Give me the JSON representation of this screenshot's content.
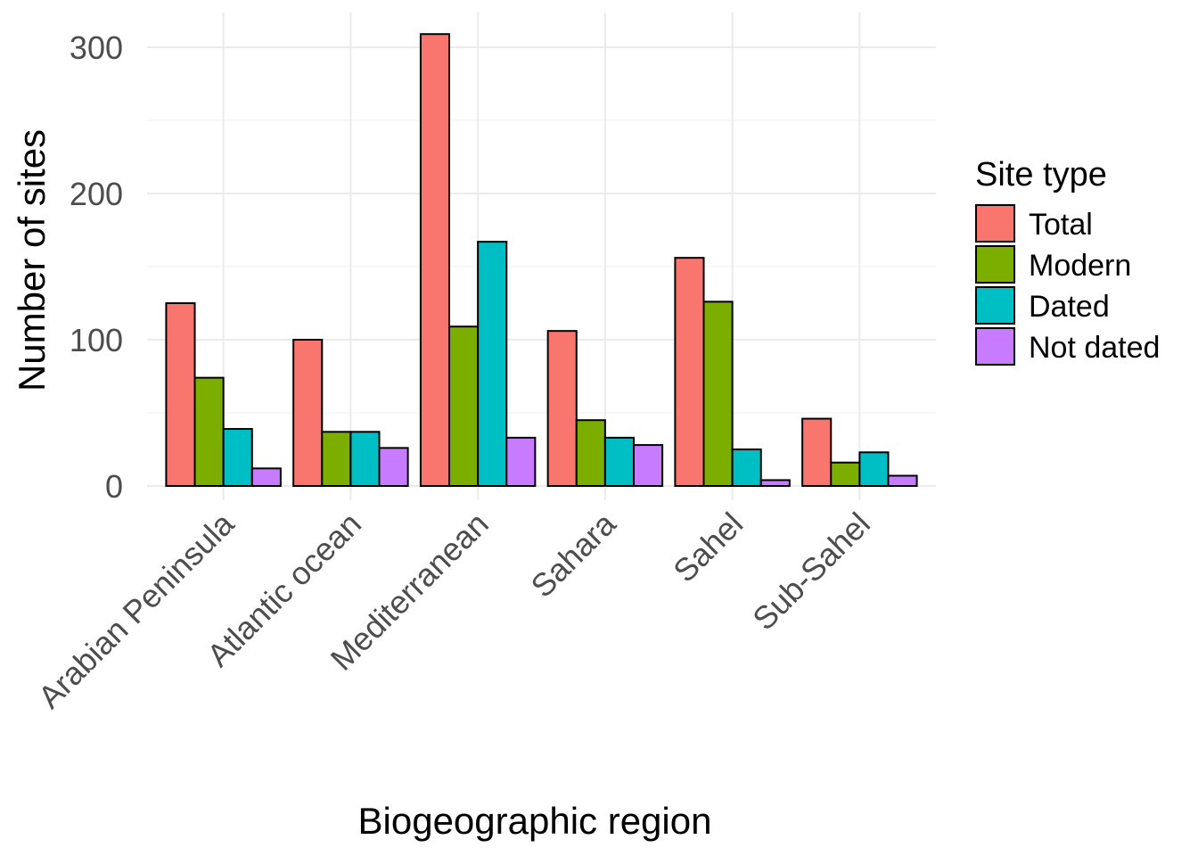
{
  "chart_data": {
    "type": "bar",
    "xlabel": "Biogeographic region",
    "ylabel": "Number of sites",
    "ylim": [
      -10,
      325
    ],
    "yticks": [
      0,
      100,
      200,
      300
    ],
    "grid": true,
    "legend_position": "right",
    "legend_title": "Site type",
    "categories": [
      "Arabian Peninsula",
      "Atlantic ocean",
      "Mediterranean",
      "Sahara",
      "Sahel",
      "Sub-Sahel"
    ],
    "series": [
      {
        "name": "Total",
        "color": "#F8766D",
        "values": [
          125,
          100,
          309,
          106,
          156,
          46
        ]
      },
      {
        "name": "Modern",
        "color": "#7CAE00",
        "values": [
          74,
          37,
          109,
          45,
          126,
          16
        ]
      },
      {
        "name": "Dated",
        "color": "#00BFC4",
        "values": [
          39,
          37,
          167,
          33,
          25,
          23
        ]
      },
      {
        "name": "Not dated",
        "color": "#C77CFF",
        "values": [
          12,
          26,
          33,
          28,
          4,
          7
        ]
      }
    ]
  }
}
